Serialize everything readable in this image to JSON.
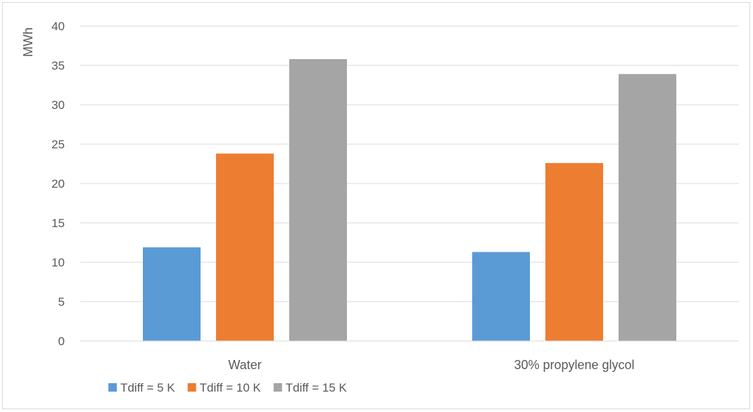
{
  "chart_data": {
    "type": "bar",
    "title": "",
    "xlabel": "",
    "ylabel": "MWh",
    "ylim": [
      0,
      40
    ],
    "ytick_step": 5,
    "grid": true,
    "legend_position": "bottom-left",
    "categories": [
      "Water",
      "30% propylene glycol"
    ],
    "series": [
      {
        "name": "Tdiff = 5 K",
        "color": "#5b9bd5",
        "values": [
          11.9,
          11.3
        ]
      },
      {
        "name": "Tdiff = 10 K",
        "color": "#ed7d31",
        "values": [
          23.8,
          22.6
        ]
      },
      {
        "name": "Tdiff = 15 K",
        "color": "#a5a5a5",
        "values": [
          35.8,
          33.9
        ]
      }
    ]
  }
}
